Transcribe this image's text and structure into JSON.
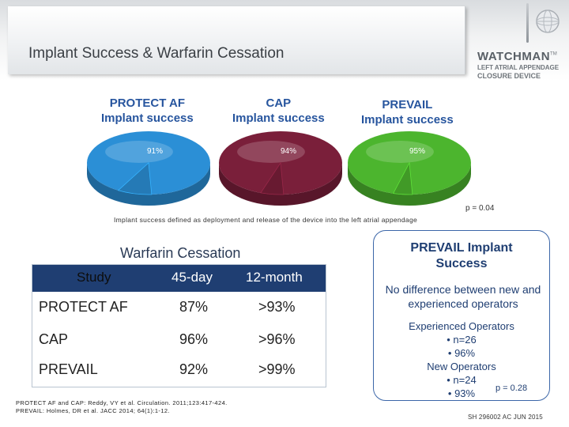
{
  "header": {
    "title": "Implant Success & Warfarin Cessation",
    "brand": {
      "name": "WATCHMAN",
      "tm": "TM",
      "line1": "LEFT ATRIAL APPENDAGE",
      "line2": "CLOSURE DEVICE"
    }
  },
  "pies": [
    {
      "name": "PROTECT AF",
      "label_line1": "PROTECT AF",
      "label_line2": "Implant success",
      "value": 91,
      "value_label": "91%",
      "color": "#2b8fd6"
    },
    {
      "name": "CAP",
      "label_line1": "CAP",
      "label_line2": "Implant success",
      "value": 94,
      "value_label": "94%",
      "color": "#7a1f3a"
    },
    {
      "name": "PREVAIL",
      "label_line1": "PREVAIL",
      "label_line2": "Implant success",
      "value": 95,
      "value_label": "95%",
      "color": "#4cb52e"
    }
  ],
  "p_value_top": "p = 0.04",
  "implant_definition": "Implant success defined as deployment and release of the device into the left atrial appendage",
  "warfarin": {
    "title": "Warfarin Cessation",
    "headers": [
      "Study",
      "45-day",
      "12-month"
    ],
    "rows": [
      [
        "PROTECT AF",
        "87%",
        ">93%"
      ],
      [
        "CAP",
        "96%",
        ">96%"
      ],
      [
        "PREVAIL",
        "92%",
        ">99%"
      ]
    ]
  },
  "references": {
    "line1": "PROTECT AF and CAP: Reddy, VY et al. Circulation. 2011;123:417-424.",
    "line2": "PREVAIL: Holmes, DR et al. JACC 2014; 64(1):1-12."
  },
  "prevail_box": {
    "title_line1": "PREVAIL Implant",
    "title_line2": "Success",
    "desc": "No difference between new and experienced operators",
    "exp_label": "Experienced Operators",
    "exp_n": "• n=26",
    "exp_pct": "• 96%",
    "new_label": "New Operators",
    "new_n": "• n=24",
    "new_pct": "• 93%",
    "p_value": "p = 0.28"
  },
  "doc_code": "SH 296002 AC JUN 2015"
}
